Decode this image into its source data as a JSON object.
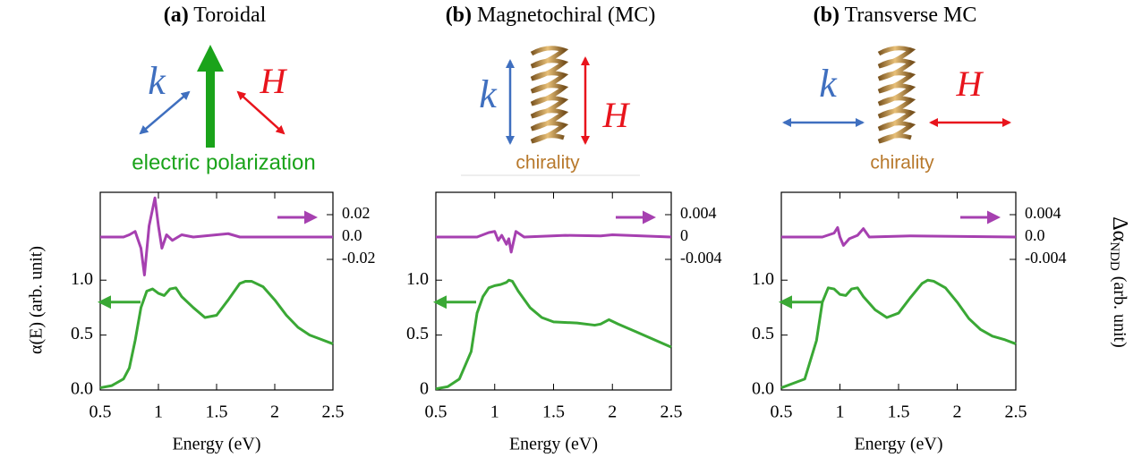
{
  "panels": [
    {
      "label": "(a)",
      "title": "Toroidal",
      "k": "k",
      "H": "H",
      "caption": "electric polarization"
    },
    {
      "label": "(b)",
      "title": "Magnetochiral (MC)",
      "k": "k",
      "H": "H",
      "caption": "chirality"
    },
    {
      "label": "(b)",
      "title": "Transverse MC",
      "k": "k",
      "H": "H",
      "caption": "chirality"
    }
  ],
  "chart_data": [
    {
      "type": "line",
      "xlabel": "Energy (eV)",
      "ylabel": "α(E) (arb. unit)",
      "xlim": [
        0.5,
        2.5
      ],
      "xticks": [
        0.5,
        1,
        1.5,
        2,
        2.5
      ],
      "ylim": [
        0,
        1.8
      ],
      "yticks": [
        {
          "value": 0,
          "label": "0.0"
        },
        0.5,
        {
          "value": 1,
          "label": "1.0"
        }
      ],
      "y2lim": [
        -0.1368,
        0.04
      ],
      "y2ticks": [
        0.02,
        {
          "value": 0,
          "label": "0.0"
        },
        -0.02
      ],
      "series": [
        {
          "color": "#3aa835",
          "x": [
            0.5,
            0.6,
            0.7,
            0.75,
            0.8,
            0.85,
            0.9,
            0.95,
            1.0,
            1.05,
            1.1,
            1.15,
            1.2,
            1.3,
            1.4,
            1.5,
            1.6,
            1.7,
            1.75,
            1.8,
            1.9,
            2.0,
            2.1,
            2.2,
            2.3,
            2.4,
            2.5
          ],
          "values": [
            0.02,
            0.04,
            0.1,
            0.2,
            0.45,
            0.75,
            0.9,
            0.92,
            0.88,
            0.86,
            0.92,
            0.93,
            0.85,
            0.75,
            0.66,
            0.68,
            0.82,
            0.97,
            0.99,
            0.99,
            0.94,
            0.82,
            0.68,
            0.57,
            0.5,
            0.46,
            0.42
          ]
        },
        {
          "color": "#a640b0",
          "axis": "y2",
          "x": [
            0.5,
            0.7,
            0.75,
            0.8,
            0.85,
            0.88,
            0.92,
            0.97,
            1.0,
            1.03,
            1.07,
            1.12,
            1.2,
            1.3,
            1.6,
            1.7,
            2.5
          ],
          "values": [
            0,
            0,
            0.002,
            0.005,
            -0.01,
            -0.034,
            0.01,
            0.035,
            0.01,
            -0.01,
            0.002,
            -0.003,
            0.002,
            0,
            0.003,
            0,
            0
          ]
        }
      ]
    },
    {
      "type": "line",
      "xlabel": "Energy (eV)",
      "xlim": [
        0.5,
        2.5
      ],
      "xticks": [
        0.5,
        1,
        1.5,
        2,
        2.5
      ],
      "ylim": [
        0,
        1.8
      ],
      "yticks": [
        0,
        0.5,
        {
          "value": 1,
          "label": "1.0"
        }
      ],
      "y2lim": [
        -0.02736,
        0.008
      ],
      "y2ticks": [
        0.004,
        0,
        -0.004
      ],
      "series": [
        {
          "color": "#3aa835",
          "x": [
            0.5,
            0.6,
            0.7,
            0.8,
            0.85,
            0.9,
            0.95,
            1.0,
            1.05,
            1.1,
            1.12,
            1.15,
            1.2,
            1.3,
            1.4,
            1.5,
            1.7,
            1.85,
            1.9,
            1.97,
            2.05,
            2.2,
            2.35,
            2.5
          ],
          "values": [
            0.01,
            0.03,
            0.1,
            0.35,
            0.7,
            0.85,
            0.93,
            0.95,
            0.96,
            0.98,
            1.0,
            0.99,
            0.9,
            0.75,
            0.66,
            0.62,
            0.61,
            0.59,
            0.6,
            0.64,
            0.6,
            0.53,
            0.46,
            0.39
          ]
        },
        {
          "color": "#a640b0",
          "axis": "y2",
          "x": [
            0.5,
            0.85,
            0.95,
            1.0,
            1.03,
            1.06,
            1.1,
            1.12,
            1.14,
            1.18,
            1.25,
            1.6,
            1.9,
            2.0,
            2.5
          ],
          "values": [
            0,
            0,
            0.0008,
            0.001,
            -0.0006,
            0.0003,
            -0.0013,
            -0.0003,
            -0.0027,
            0.001,
            0,
            0.0003,
            0.0002,
            0.0004,
            0
          ]
        }
      ]
    },
    {
      "type": "line",
      "xlabel": "Energy (eV)",
      "y2label": {
        "main": "Δα",
        "sub": "NDD",
        "unit": "(arb. unit)"
      },
      "xlim": [
        0.5,
        2.5
      ],
      "xticks": [
        0.5,
        1,
        1.5,
        2,
        2.5
      ],
      "ylim": [
        0,
        1.8
      ],
      "yticks": [
        {
          "value": 0,
          "label": "0.0"
        },
        0.5,
        {
          "value": 1,
          "label": "1.0"
        }
      ],
      "y2lim": [
        -0.02736,
        0.008
      ],
      "y2ticks": [
        0.004,
        {
          "value": 0,
          "label": "0.0"
        },
        -0.004
      ],
      "series": [
        {
          "color": "#3aa835",
          "x": [
            0.5,
            0.7,
            0.8,
            0.85,
            0.9,
            0.95,
            1.0,
            1.05,
            1.1,
            1.15,
            1.2,
            1.3,
            1.4,
            1.5,
            1.6,
            1.7,
            1.75,
            1.8,
            1.9,
            2.0,
            2.1,
            2.2,
            2.3,
            2.4,
            2.5
          ],
          "values": [
            0.02,
            0.1,
            0.45,
            0.8,
            0.93,
            0.92,
            0.87,
            0.86,
            0.92,
            0.93,
            0.85,
            0.73,
            0.66,
            0.7,
            0.84,
            0.97,
            1.0,
            0.99,
            0.93,
            0.8,
            0.65,
            0.55,
            0.49,
            0.46,
            0.42
          ]
        },
        {
          "color": "#a640b0",
          "axis": "y2",
          "x": [
            0.5,
            0.85,
            0.95,
            0.98,
            1.0,
            1.03,
            1.08,
            1.15,
            1.2,
            1.25,
            1.6,
            2.5
          ],
          "values": [
            0,
            0,
            0.0007,
            0.0017,
            0,
            -0.0015,
            -0.0003,
            0.0003,
            0.0015,
            0,
            0.0002,
            0
          ]
        }
      ]
    }
  ]
}
